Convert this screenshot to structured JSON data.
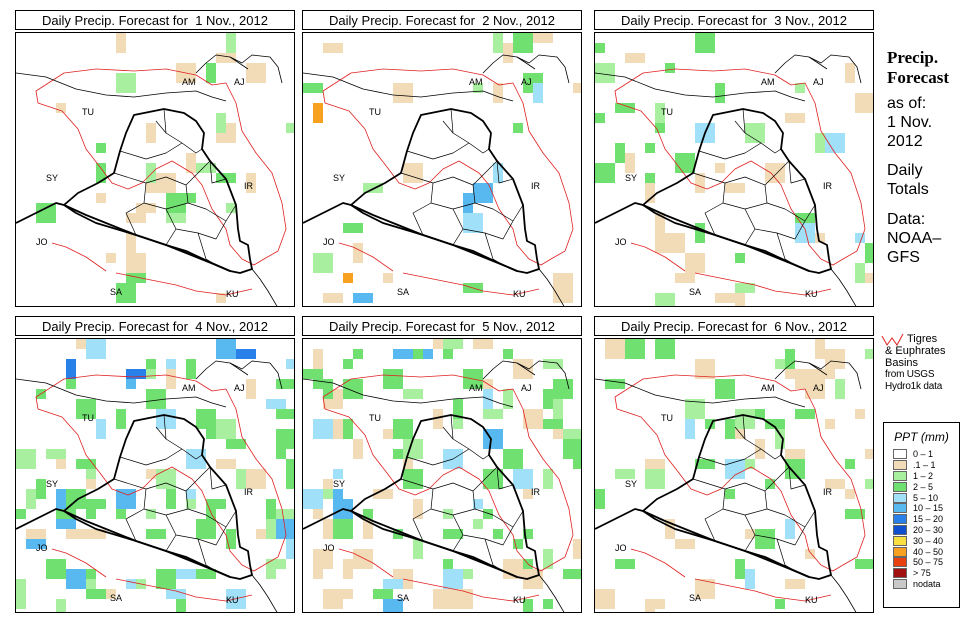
{
  "panels": [
    {
      "title": "Daily Precip. Forecast for  1 Nov., 2012",
      "seed": 11,
      "cells": [
        {
          "c": "tan",
          "n": 18
        },
        {
          "c": "green",
          "n": 10
        },
        {
          "c": "lgreen",
          "n": 8
        }
      ]
    },
    {
      "title": "Daily Precip. Forecast for  2 Nov., 2012",
      "seed": 23,
      "cells": [
        {
          "c": "tan",
          "n": 12
        },
        {
          "c": "green",
          "n": 6
        },
        {
          "c": "lgreen",
          "n": 4
        },
        {
          "c": "cyan",
          "n": 3
        },
        {
          "c": "blue",
          "n": 3
        },
        {
          "c": "orange",
          "n": 2
        }
      ]
    },
    {
      "title": "Daily Precip. Forecast for  3 Nov., 2012",
      "seed": 37,
      "cells": [
        {
          "c": "tan",
          "n": 20
        },
        {
          "c": "green",
          "n": 16
        },
        {
          "c": "lgreen",
          "n": 8
        },
        {
          "c": "cyan",
          "n": 4
        }
      ]
    },
    {
      "title": "Daily Precip. Forecast for  4 Nov., 2012",
      "seed": 41,
      "cells": [
        {
          "c": "tan",
          "n": 14
        },
        {
          "c": "green",
          "n": 42
        },
        {
          "c": "lgreen",
          "n": 20
        },
        {
          "c": "cyan",
          "n": 14
        },
        {
          "c": "blue",
          "n": 8
        },
        {
          "c": "dblue",
          "n": 3
        }
      ]
    },
    {
      "title": "Daily Precip. Forecast for  5 Nov., 2012",
      "seed": 53,
      "cells": [
        {
          "c": "tan",
          "n": 40
        },
        {
          "c": "green",
          "n": 40
        },
        {
          "c": "lgreen",
          "n": 18
        },
        {
          "c": "cyan",
          "n": 10
        },
        {
          "c": "blue",
          "n": 6
        }
      ]
    },
    {
      "title": "Daily Precip. Forecast for  6 Nov., 2012",
      "seed": 67,
      "cells": [
        {
          "c": "tan",
          "n": 30
        },
        {
          "c": "green",
          "n": 24
        },
        {
          "c": "lgreen",
          "n": 10
        },
        {
          "c": "cyan",
          "n": 4
        }
      ]
    }
  ],
  "map_labels": [
    "AM",
    "AJ",
    "TU",
    "SY",
    "IR",
    "JO",
    "SA",
    "KU"
  ],
  "side": {
    "title_line1": "Precip.",
    "title_line2": "Forecast",
    "as_of": "as of:",
    "date_line1": "1 Nov.",
    "date_line2": "2012",
    "daily_line1": "Daily",
    "daily_line2": "Totals",
    "data_line1": "Data:",
    "data_line2": "NOAA–",
    "data_line3": "GFS"
  },
  "basin_key": {
    "line1": "Tigres",
    "line2": "& Euphrates",
    "line3": "Basins",
    "line4": "from USGS",
    "line5": "Hydro1k data"
  },
  "legend": {
    "title": "PPT (mm)",
    "items": [
      {
        "label": "0 – 1",
        "color": "#ffffff"
      },
      {
        "label": ".1 – 1",
        "color": "#f2dcb8"
      },
      {
        "label": "1 – 2",
        "color": "#a8f0a0"
      },
      {
        "label": "2 – 5",
        "color": "#70e070"
      },
      {
        "label": "5 – 10",
        "color": "#a0e0f8"
      },
      {
        "label": "10 – 15",
        "color": "#58b8f0"
      },
      {
        "label": "15 – 20",
        "color": "#2880e8"
      },
      {
        "label": "20 – 30",
        "color": "#1050d0"
      },
      {
        "label": "30 – 40",
        "color": "#f8e040"
      },
      {
        "label": "40 – 50",
        "color": "#f8a020"
      },
      {
        "label": "50 – 75",
        "color": "#e84010"
      },
      {
        "label": "> 75",
        "color": "#a01010"
      },
      {
        "label": "nodata",
        "color": "#c8c8c8"
      }
    ]
  },
  "colors": {
    "tan": "#f2dcb8",
    "lgreen": "#a8f0a0",
    "green": "#70e070",
    "cyan": "#a0e0f8",
    "blue": "#58b8f0",
    "dblue": "#2880e8",
    "orange": "#f8a020",
    "basin": "#e02020"
  }
}
